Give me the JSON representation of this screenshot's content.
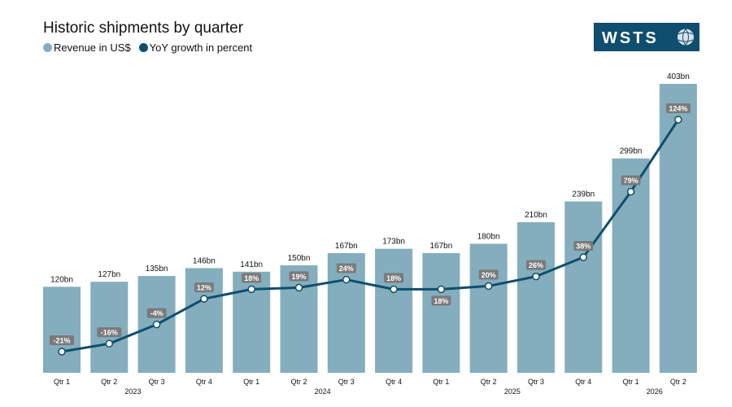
{
  "title": "Historic shipments by quarter",
  "legend": [
    {
      "label": "Revenue in US$",
      "color": "#84aebd"
    },
    {
      "label": "YoY growth in percent",
      "color": "#0f4e6e"
    }
  ],
  "logo": {
    "text": "WSTS",
    "color": "#0f4e6e"
  },
  "chart_data": {
    "type": "bar",
    "title": "Historic shipments by quarter",
    "categories": [
      "Qtr 1",
      "Qtr 2",
      "Qtr 3",
      "Qtr 4",
      "Qtr 1",
      "Qtr 2",
      "Qtr 3",
      "Qtr 4",
      "Qtr 1",
      "Qtr 2",
      "Qtr 3",
      "Qtr 4",
      "Qtr 1",
      "Qtr 2"
    ],
    "year_labels": [
      "2023",
      "2024",
      "2025",
      "2026"
    ],
    "series": [
      {
        "name": "Revenue in US$",
        "type": "bar",
        "values": [
          120,
          127,
          135,
          146,
          141,
          150,
          167,
          173,
          167,
          180,
          210,
          239,
          299,
          403
        ],
        "labels": [
          "120bn",
          "127bn",
          "135bn",
          "146bn",
          "141bn",
          "150bn",
          "167bn",
          "173bn",
          "167bn",
          "180bn",
          "210bn",
          "239bn",
          "299bn",
          "403bn"
        ]
      },
      {
        "name": "YoY growth in percent",
        "type": "line",
        "values": [
          -21,
          -16,
          -4,
          12,
          18,
          19,
          24,
          18,
          18,
          20,
          26,
          38,
          79,
          124
        ],
        "labels": [
          "-21%",
          "-16%",
          "-4%",
          "12%",
          "18%",
          "19%",
          "24%",
          "18%",
          "18%",
          "20%",
          "26%",
          "38%",
          "79%",
          "124%"
        ]
      }
    ],
    "colors": {
      "bar": "#84aebd",
      "line": "#0f4e6e",
      "label_box": "#7a7a7a"
    },
    "grid": false,
    "legend_position": "top-left"
  }
}
